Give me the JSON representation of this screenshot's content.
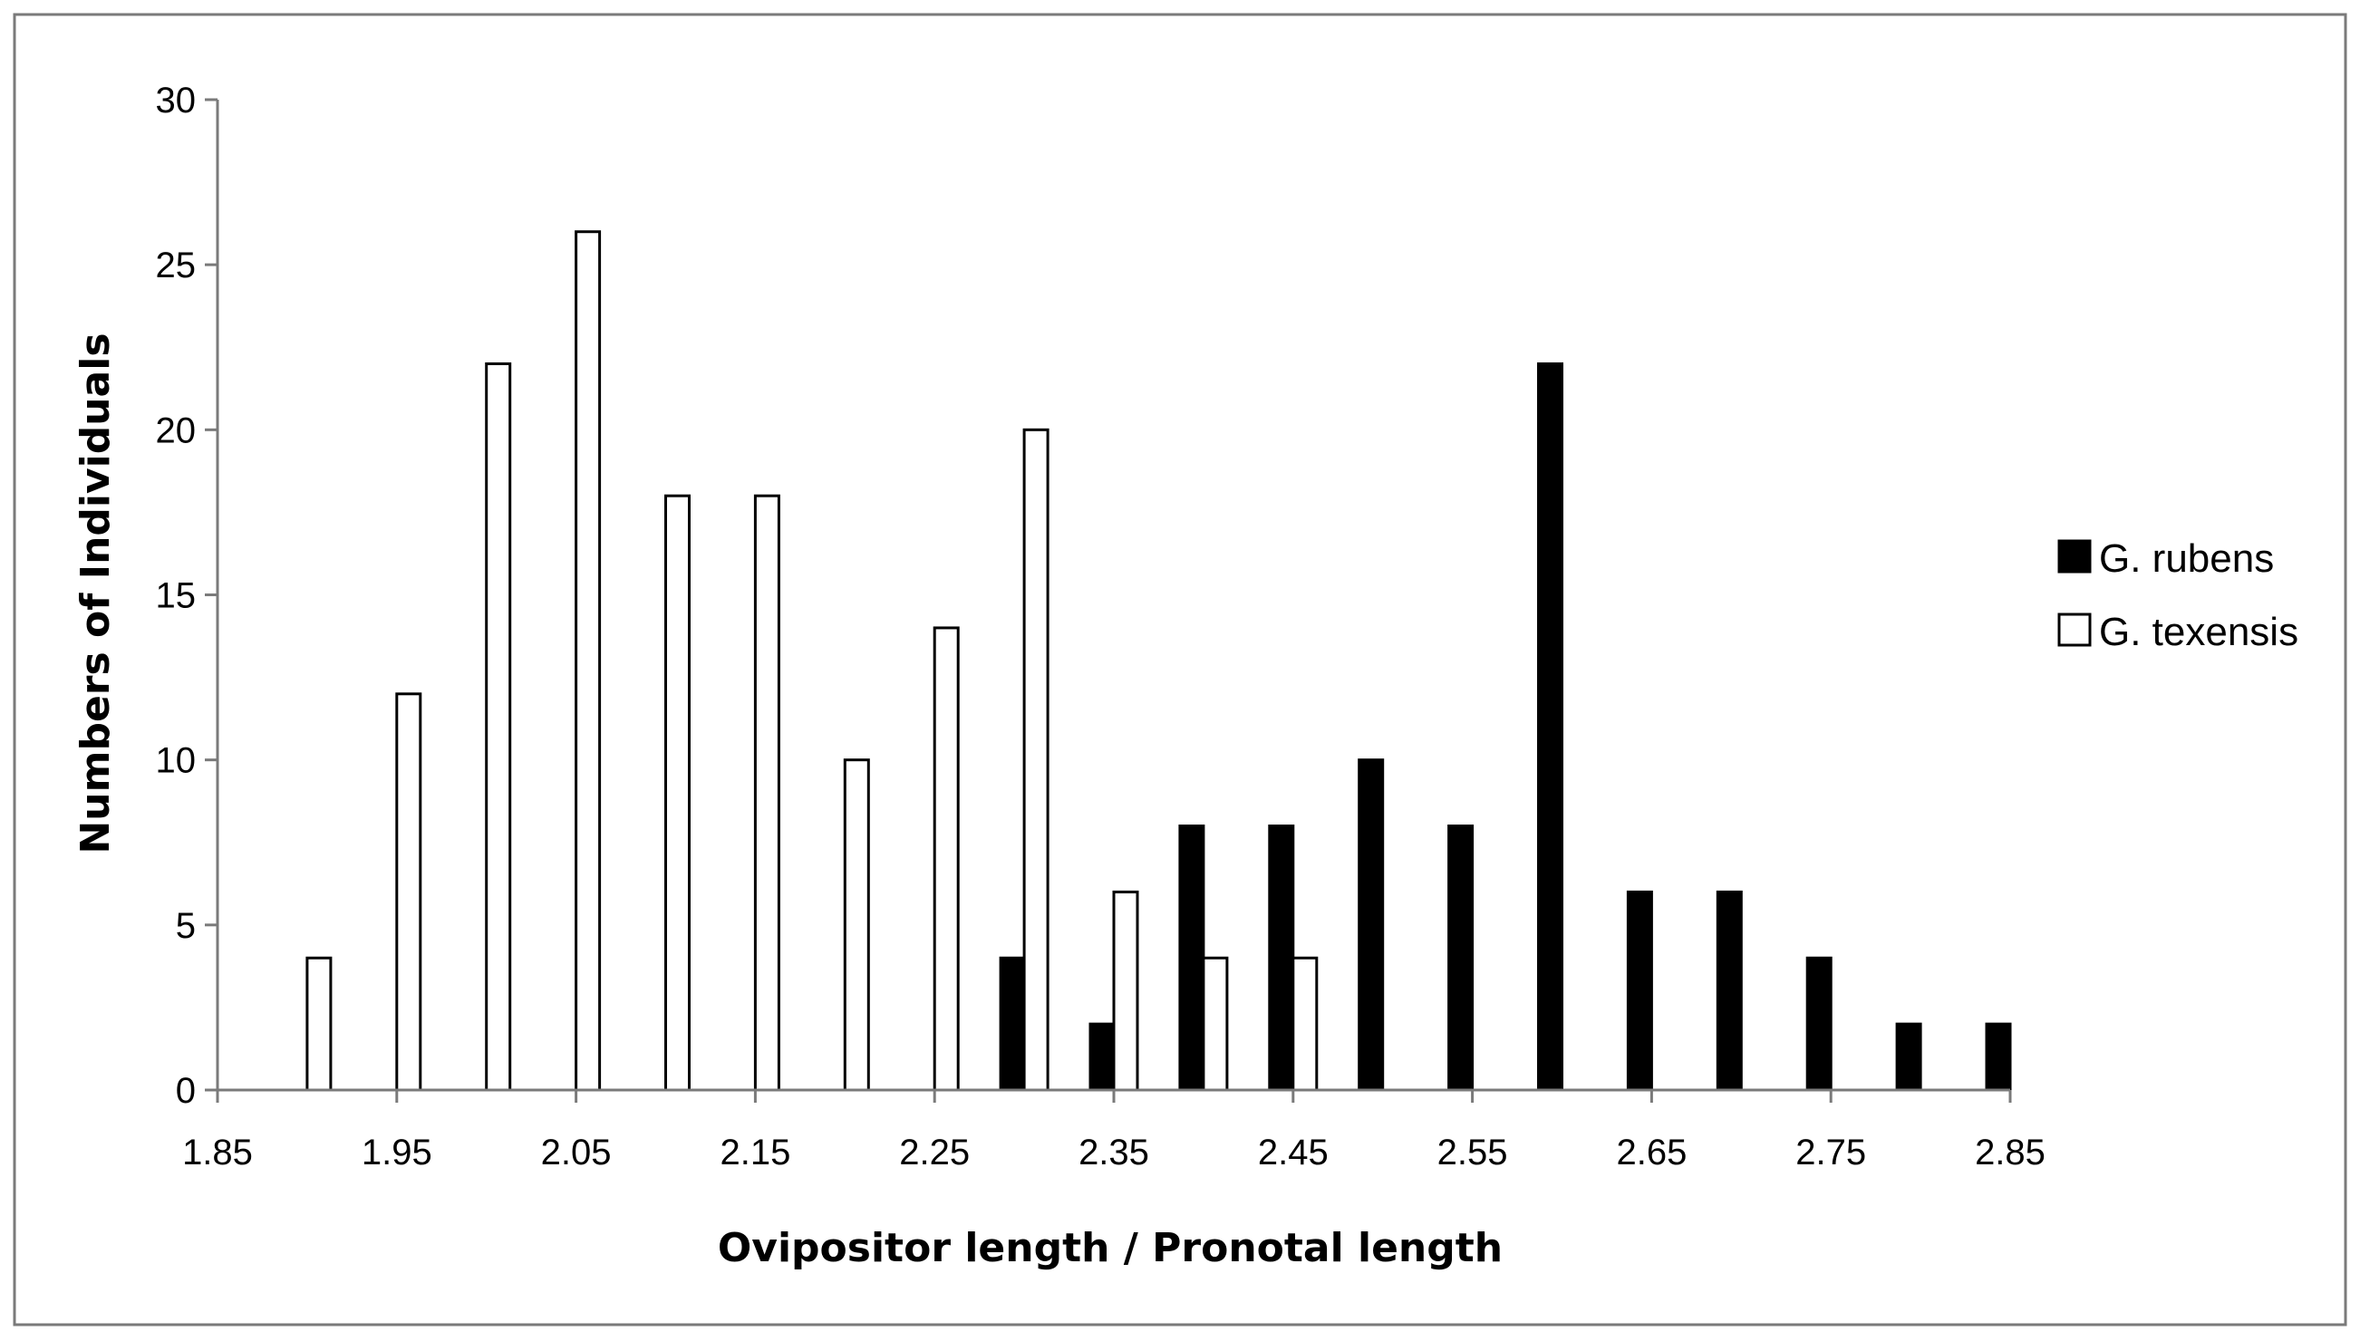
{
  "chart_data": {
    "type": "bar",
    "title": "",
    "xlabel": "Ovipositor length / Pronotal length",
    "ylabel": "Numbers of Individuals",
    "ylim": [
      0,
      30
    ],
    "yticks": [
      "0",
      "5",
      "10",
      "15",
      "20",
      "25",
      "30"
    ],
    "xlim": [
      1.85,
      2.85
    ],
    "xticks": [
      "1.85",
      "1.95",
      "2.05",
      "2.15",
      "2.25",
      "2.35",
      "2.45",
      "2.55",
      "2.65",
      "2.75",
      "2.85"
    ],
    "grid": false,
    "legend_position": "right",
    "categories": [
      "1.9",
      "1.95",
      "2",
      "2.05",
      "2.1",
      "2.15",
      "2.2",
      "2.25",
      "2.3",
      "2.35",
      "2.4",
      "2.45",
      "2.5",
      "2.55",
      "2.6",
      "2.65",
      "2.7",
      "2.75",
      "2.8",
      "2.85"
    ],
    "series": [
      {
        "name": "G. rubens",
        "color": "#000000",
        "values": [
          0,
          0,
          0,
          0,
          0,
          0,
          0,
          0,
          4,
          2,
          8,
          8,
          10,
          8,
          22,
          6,
          6,
          4,
          2,
          2
        ]
      },
      {
        "name": "G. texensis",
        "color": "#ffffff",
        "values": [
          4,
          12,
          22,
          26,
          18,
          18,
          10,
          14,
          20,
          6,
          4,
          4,
          0,
          0,
          0,
          0,
          0,
          0,
          0,
          0
        ]
      }
    ]
  }
}
